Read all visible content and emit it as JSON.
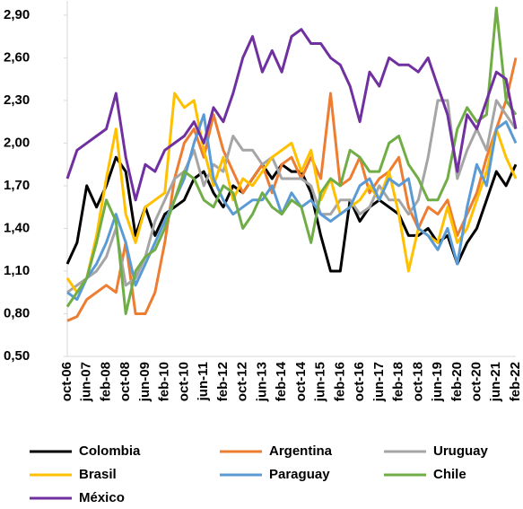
{
  "chart_data": {
    "type": "line",
    "categories": [
      "oct-06",
      null,
      "jun-07",
      null,
      "feb-08",
      null,
      "oct-08",
      null,
      "jun-09",
      null,
      "feb-10",
      null,
      "oct-10",
      null,
      "jun-11",
      null,
      "feb-12",
      null,
      "oct-12",
      null,
      "jun-13",
      null,
      "feb-14",
      null,
      "oct-14",
      null,
      "jun-15",
      null,
      "feb-16",
      null,
      "oct-16",
      null,
      "jun-17",
      null,
      "feb-18",
      null,
      "oct-18",
      null,
      "jun-19",
      null,
      "feb-20",
      null,
      "oct-20",
      null,
      "jun-21",
      null,
      "feb-22"
    ],
    "series": [
      {
        "name": "Colombia",
        "color": "#000000",
        "values": [
          1.15,
          1.3,
          1.7,
          1.55,
          1.7,
          1.9,
          1.8,
          1.35,
          1.55,
          1.35,
          1.5,
          1.55,
          1.6,
          1.75,
          1.8,
          1.65,
          1.55,
          1.7,
          1.65,
          1.75,
          1.85,
          1.75,
          1.85,
          1.8,
          1.8,
          1.65,
          1.35,
          1.1,
          1.1,
          1.6,
          1.45,
          1.55,
          1.6,
          1.55,
          1.5,
          1.35,
          1.35,
          1.4,
          1.3,
          1.35,
          1.15,
          1.3,
          1.4,
          1.6,
          1.8,
          1.7,
          1.85
        ]
      },
      {
        "name": "Argentina",
        "color": "#ed7d31",
        "values": [
          0.75,
          0.78,
          0.9,
          0.95,
          1.0,
          0.95,
          1.3,
          0.8,
          0.8,
          0.95,
          1.3,
          1.75,
          2.0,
          2.1,
          1.9,
          2.2,
          1.95,
          1.8,
          1.65,
          1.75,
          1.85,
          1.65,
          1.85,
          1.9,
          1.75,
          1.9,
          1.75,
          2.35,
          1.7,
          1.75,
          1.9,
          1.65,
          1.75,
          1.8,
          1.9,
          1.55,
          1.4,
          1.55,
          1.5,
          1.6,
          1.35,
          1.5,
          1.65,
          1.9,
          2.1,
          2.3,
          2.6
        ]
      },
      {
        "name": "Uruguay",
        "color": "#a5a5a5",
        "values": [
          0.95,
          1.0,
          1.05,
          1.1,
          1.2,
          1.4,
          1.0,
          1.05,
          1.2,
          1.45,
          1.6,
          1.75,
          1.8,
          1.95,
          1.7,
          1.85,
          1.8,
          2.05,
          1.95,
          1.95,
          1.85,
          1.9,
          1.75,
          1.75,
          1.75,
          1.7,
          1.5,
          1.5,
          1.6,
          1.6,
          1.5,
          1.55,
          1.7,
          1.6,
          1.6,
          1.5,
          1.6,
          1.9,
          2.3,
          2.3,
          1.75,
          1.95,
          2.1,
          1.95,
          2.3,
          2.2,
          2.1
        ]
      },
      {
        "name": "Brasil",
        "color": "#ffc000",
        "values": [
          1.05,
          0.95,
          1.05,
          1.35,
          1.75,
          2.1,
          1.5,
          1.3,
          1.55,
          1.6,
          1.65,
          2.35,
          2.25,
          2.3,
          1.95,
          1.7,
          1.9,
          1.6,
          1.75,
          1.7,
          1.8,
          1.9,
          1.95,
          2.0,
          1.8,
          1.95,
          1.6,
          1.75,
          1.5,
          1.55,
          1.6,
          1.7,
          1.6,
          1.8,
          1.5,
          1.1,
          1.4,
          1.35,
          1.3,
          1.55,
          1.3,
          1.4,
          1.6,
          1.8,
          2.1,
          1.9,
          1.75
        ]
      },
      {
        "name": "Paraguay",
        "color": "#5b9bd5",
        "values": [
          0.95,
          0.9,
          1.05,
          1.15,
          1.3,
          1.5,
          1.3,
          1.0,
          1.15,
          1.3,
          1.45,
          1.6,
          1.75,
          2.0,
          2.2,
          1.75,
          1.6,
          1.5,
          1.55,
          1.6,
          1.6,
          1.7,
          1.5,
          1.65,
          1.55,
          1.6,
          1.5,
          1.45,
          1.5,
          1.55,
          1.7,
          1.75,
          1.6,
          1.75,
          1.7,
          1.75,
          1.4,
          1.35,
          1.25,
          1.4,
          1.15,
          1.55,
          1.85,
          1.7,
          2.1,
          2.15,
          2.0
        ]
      },
      {
        "name": "Chile",
        "color": "#70ad47",
        "values": [
          0.85,
          0.95,
          1.05,
          1.3,
          1.6,
          1.45,
          0.8,
          1.1,
          1.2,
          1.25,
          1.4,
          1.6,
          1.8,
          1.75,
          1.6,
          1.55,
          1.7,
          1.65,
          1.4,
          1.5,
          1.65,
          1.55,
          1.5,
          1.6,
          1.55,
          1.3,
          1.65,
          1.75,
          1.7,
          1.95,
          1.9,
          1.8,
          1.8,
          2.0,
          2.05,
          1.85,
          1.75,
          1.6,
          1.6,
          1.75,
          2.1,
          2.25,
          2.15,
          2.2,
          2.95,
          2.3,
          2.2
        ]
      },
      {
        "name": "México",
        "color": "#7030a0",
        "values": [
          1.75,
          1.95,
          2.0,
          2.05,
          2.1,
          2.35,
          1.9,
          1.6,
          1.85,
          1.8,
          1.95,
          2.0,
          2.05,
          2.15,
          2.0,
          2.25,
          2.15,
          2.35,
          2.6,
          2.75,
          2.5,
          2.65,
          2.5,
          2.75,
          2.8,
          2.7,
          2.7,
          2.6,
          2.55,
          2.4,
          2.15,
          2.5,
          2.4,
          2.6,
          2.55,
          2.55,
          2.5,
          2.6,
          2.4,
          2.2,
          1.8,
          2.2,
          2.1,
          2.3,
          2.5,
          2.45,
          2.1
        ]
      }
    ],
    "ylim": [
      0.5,
      3.0
    ],
    "yticks": [
      {
        "value": 0.5,
        "label": "0,50"
      },
      {
        "value": 0.8,
        "label": "0,80"
      },
      {
        "value": 1.1,
        "label": "1,10"
      },
      {
        "value": 1.4,
        "label": "1,40"
      },
      {
        "value": 1.7,
        "label": "1,70"
      },
      {
        "value": 2.0,
        "label": "2,00"
      },
      {
        "value": 2.3,
        "label": "2,30"
      },
      {
        "value": 2.6,
        "label": "2,60"
      },
      {
        "value": 2.9,
        "label": "2,90"
      }
    ],
    "grid": false
  }
}
